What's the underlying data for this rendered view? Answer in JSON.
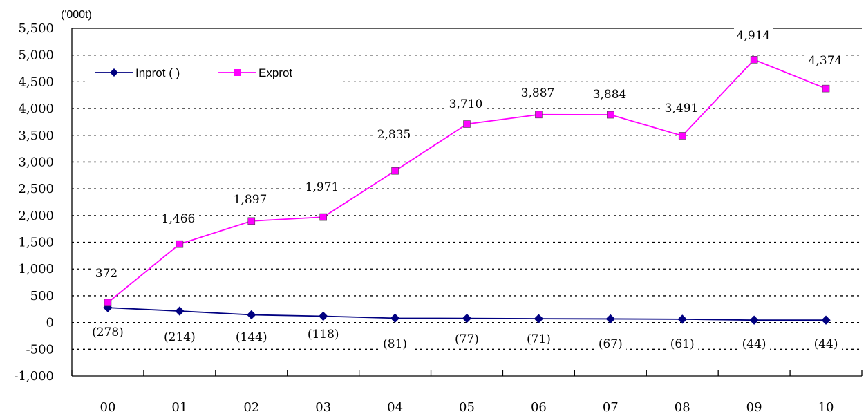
{
  "chart_data": {
    "type": "line",
    "unit_label": "('000t)",
    "categories": [
      "00",
      "01",
      "02",
      "03",
      "04",
      "05",
      "06",
      "07",
      "08",
      "09",
      "10"
    ],
    "ylim": [
      -1000,
      5500
    ],
    "yticks": [
      -1000,
      -500,
      0,
      500,
      1000,
      1500,
      2000,
      2500,
      3000,
      3500,
      4000,
      4500,
      5000,
      5500
    ],
    "ytick_labels": [
      "-1,000",
      "-500",
      "0",
      "500",
      "1,000",
      "1,500",
      "2,000",
      "2,500",
      "3,000",
      "3,500",
      "4,000",
      "4,500",
      "5,000",
      "5,500"
    ],
    "grid": true,
    "legend_position": "top-left",
    "series": [
      {
        "name": "Inprot ( )",
        "color": "#000080",
        "marker": "diamond",
        "values": [
          278,
          214,
          144,
          118,
          81,
          77,
          71,
          67,
          61,
          44,
          44
        ],
        "labels": [
          "(278)",
          "(214)",
          "(144)",
          "(118)",
          "(81)",
          "(77)",
          "(71)",
          "(67)",
          "(61)",
          "(44)",
          "(44)"
        ]
      },
      {
        "name": "Exprot",
        "color": "#ff00ff",
        "marker": "square",
        "values": [
          372,
          1466,
          1897,
          1971,
          2835,
          3710,
          3887,
          3884,
          3491,
          4914,
          4374
        ],
        "labels": [
          "372",
          "1,466",
          "1,897",
          "1,971",
          "2,835",
          "3,710",
          "3,887",
          "3,884",
          "3,491",
          "4,914",
          "4,374"
        ]
      }
    ]
  }
}
